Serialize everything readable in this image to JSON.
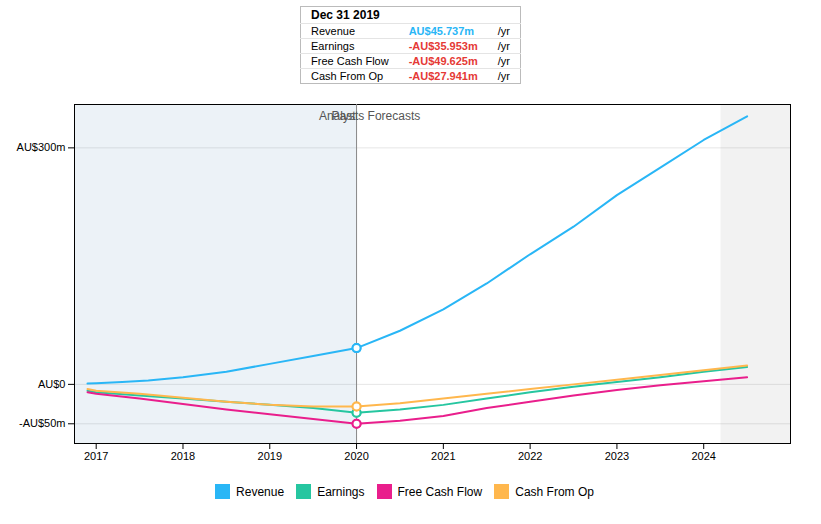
{
  "chart_data": {
    "type": "line",
    "xlim": [
      2016.75,
      2025.0
    ],
    "xticks": [
      2017,
      2018,
      2019,
      2020,
      2021,
      2022,
      2023,
      2024
    ],
    "ylim": [
      -75,
      355
    ],
    "yticks": [
      {
        "value": 300,
        "label": "AU$300m"
      },
      {
        "value": 0,
        "label": "AU$0"
      },
      {
        "value": -50,
        "label": "-AU$50m"
      }
    ],
    "grid": true,
    "legend": "bottom",
    "series": [
      {
        "name": "Revenue",
        "color": "#29b6f6",
        "x": [
          2016.9,
          2017.0,
          2017.3,
          2017.6,
          2018.0,
          2018.5,
          2019.0,
          2019.5,
          2020.0,
          2020.0,
          2020.5,
          2021.0,
          2021.5,
          2022.0,
          2022.5,
          2023.0,
          2023.5,
          2024.0,
          2024.5
        ],
        "values": [
          1,
          1.5,
          3,
          5,
          9,
          16,
          26,
          36,
          46,
          46,
          68,
          95,
          128,
          165,
          200,
          240,
          275,
          310,
          340
        ]
      },
      {
        "name": "Earnings",
        "color": "#26c6a0",
        "x": [
          2016.9,
          2017.0,
          2017.5,
          2018.0,
          2018.5,
          2019.0,
          2019.5,
          2020.0,
          2020.0,
          2020.5,
          2021.0,
          2021.5,
          2022.0,
          2022.5,
          2023.0,
          2023.5,
          2024.0,
          2024.5
        ],
        "values": [
          -8,
          -10,
          -14,
          -18,
          -22,
          -26,
          -30,
          -36,
          -36,
          -32,
          -26,
          -18,
          -10,
          -3,
          3,
          9,
          16,
          22
        ]
      },
      {
        "name": "Free Cash Flow",
        "color": "#e91e8c",
        "x": [
          2016.9,
          2017.0,
          2017.5,
          2018.0,
          2018.5,
          2019.0,
          2019.5,
          2020.0,
          2020.0,
          2020.5,
          2021.0,
          2021.5,
          2022.0,
          2022.5,
          2023.0,
          2023.5,
          2024.0,
          2024.5
        ],
        "values": [
          -10,
          -12,
          -18,
          -25,
          -32,
          -38,
          -44,
          -50,
          -50,
          -46,
          -40,
          -30,
          -22,
          -14,
          -7,
          -1,
          4,
          9
        ]
      },
      {
        "name": "Cash From Op",
        "color": "#ffb74d",
        "x": [
          2016.9,
          2017.0,
          2017.5,
          2018.0,
          2018.5,
          2019.0,
          2019.5,
          2020.0,
          2020.0,
          2020.5,
          2021.0,
          2021.5,
          2022.0,
          2022.5,
          2023.0,
          2023.5,
          2024.0,
          2024.5
        ],
        "values": [
          -6,
          -8,
          -12,
          -17,
          -22,
          -26,
          -28,
          -28,
          -28,
          -24,
          -18,
          -12,
          -6,
          0,
          6,
          12,
          18,
          24
        ]
      }
    ],
    "annotations": [
      {
        "text": "Past",
        "x": 2019.85,
        "y": 340
      },
      {
        "text": "Analysts Forecasts",
        "x": 2020.15,
        "y": 340
      }
    ],
    "spans": [
      {
        "x0": 2016.75,
        "x1": 2020.0
      },
      {
        "x0": 2024.2,
        "x1": 2025.0
      }
    ],
    "vline": 2020.0,
    "tooltip": {
      "title": "Dec 31 2019",
      "unit": "/yr",
      "rows": [
        {
          "name": "Revenue",
          "value": 45.737,
          "label": "AU$45.737m",
          "color": "#29b6f6"
        },
        {
          "name": "Earnings",
          "value": -35.953,
          "label": "-AU$35.953m",
          "color": "#e53935"
        },
        {
          "name": "Free Cash Flow",
          "value": -49.625,
          "label": "-AU$49.625m",
          "color": "#e53935"
        },
        {
          "name": "Cash From Op",
          "value": -27.941,
          "label": "-AU$27.941m",
          "color": "#e53935"
        }
      ]
    }
  }
}
